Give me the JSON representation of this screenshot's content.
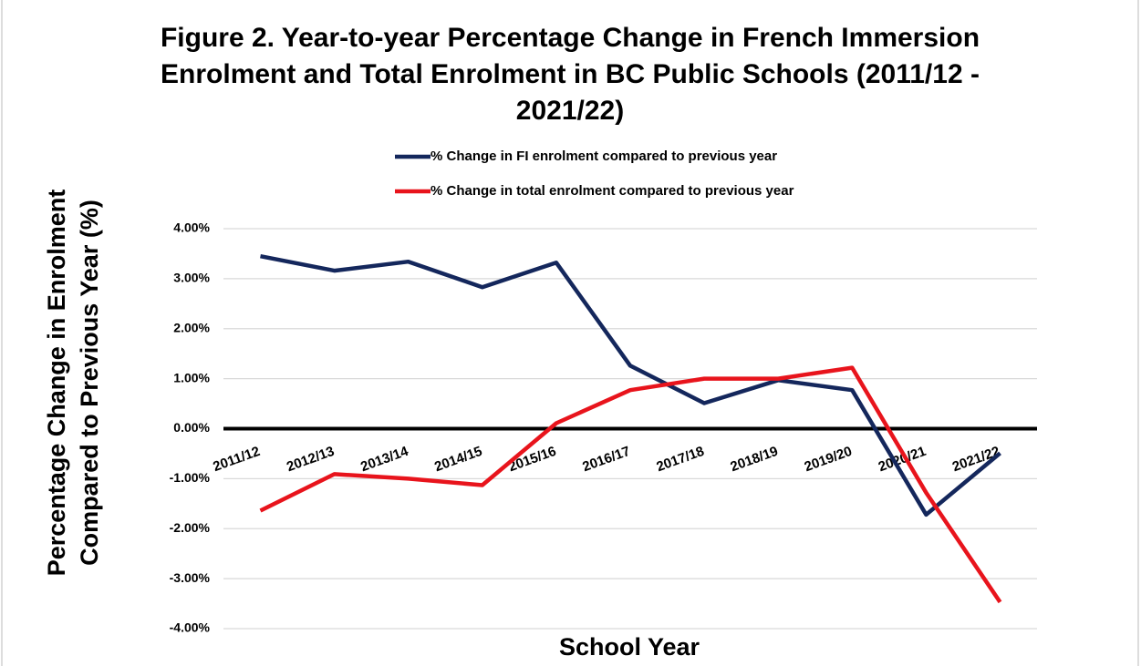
{
  "chart_data": {
    "type": "line",
    "title": "Figure 2. Year-to-year Percentage Change in French Immersion Enrolment and Total Enrolment in BC Public Schools (2011/12 - 2021/22)",
    "x_label": "School Year",
    "y_label": "Percentage Change in Enrolment Compared to Previous Year (%)",
    "categories": [
      "2011/12",
      "2012/13",
      "2013/14",
      "2014/15",
      "2015/16",
      "2016/17",
      "2017/18",
      "2018/19",
      "2019/20",
      "2020/21",
      "2021/22"
    ],
    "series": [
      {
        "name": "% Change in FI enrolment compared to previous year",
        "color": "#14275c",
        "values": [
          3.45,
          3.16,
          3.34,
          2.83,
          3.32,
          1.26,
          0.51,
          0.97,
          0.77,
          -1.72,
          -0.49
        ]
      },
      {
        "name": "% Change in total enrolment compared to previous year",
        "color": "#e8141c",
        "values": [
          -1.64,
          -0.91,
          -1.0,
          -1.13,
          0.11,
          0.77,
          1.0,
          1.0,
          1.22,
          -1.28,
          -3.47
        ]
      }
    ],
    "ylim": [
      -4,
      4
    ],
    "yticks": [
      {
        "value": 4,
        "label": "4.00%"
      },
      {
        "value": 3,
        "label": "3.00%"
      },
      {
        "value": 2,
        "label": "2.00%"
      },
      {
        "value": 1,
        "label": "1.00%"
      },
      {
        "value": 0,
        "label": "0.00%"
      },
      {
        "value": -1,
        "label": "-1.00%"
      },
      {
        "value": -2,
        "label": "-2.00%"
      },
      {
        "value": -3,
        "label": "-3.00%"
      },
      {
        "value": -4,
        "label": "-4.00%"
      }
    ],
    "grid": true,
    "legend": "top"
  }
}
